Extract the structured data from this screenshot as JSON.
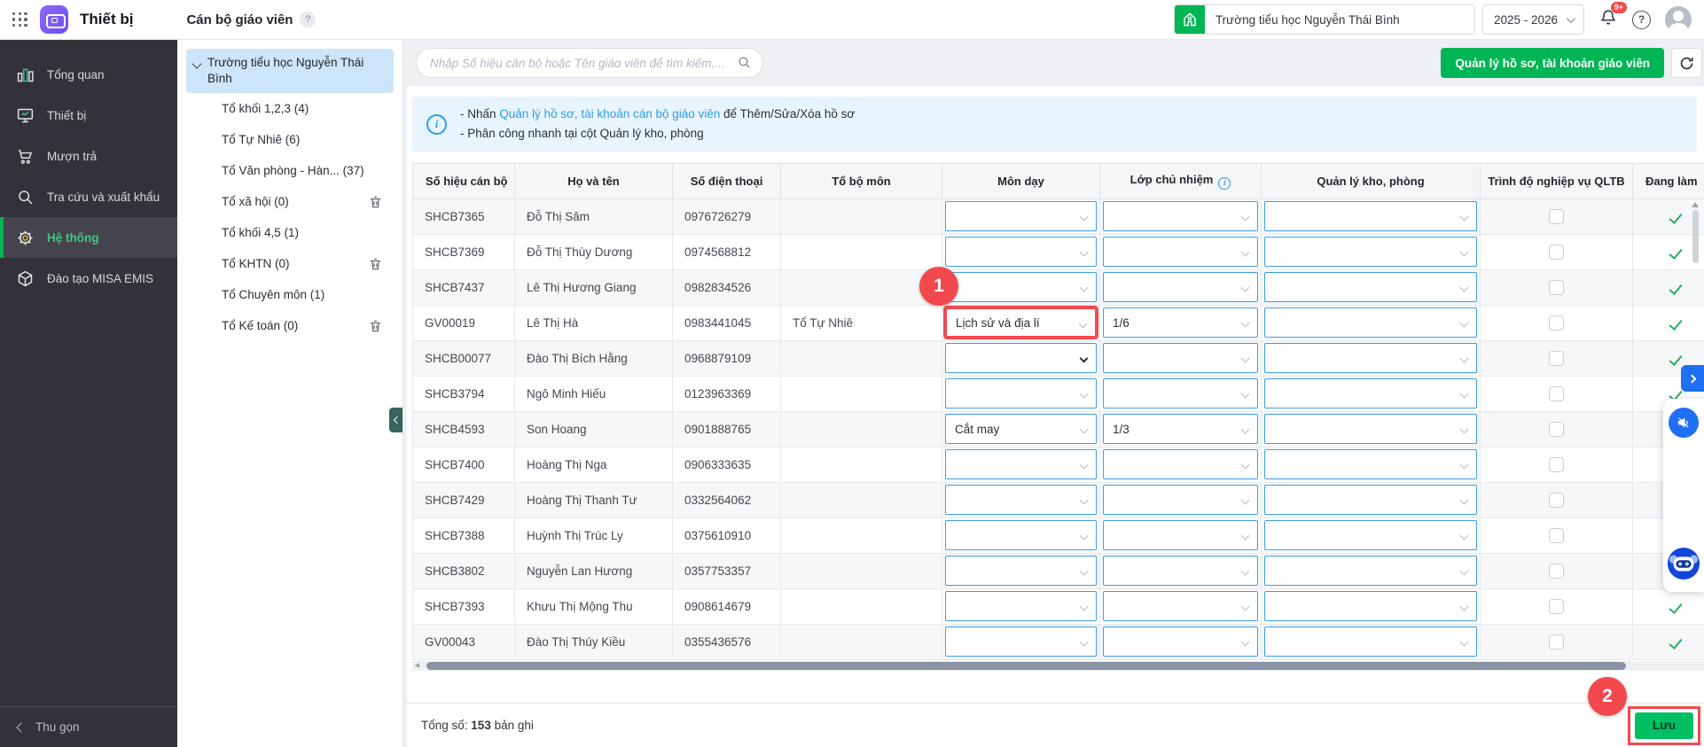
{
  "header": {
    "app_title": "Thiết bị",
    "page_title": "Cán bộ giáo viên",
    "help_glyph": "?",
    "school_name": "Trường tiểu học Nguyễn Thái Bình",
    "school_year": "2025 - 2026",
    "notification_badge": "9+"
  },
  "sidebar": {
    "items": [
      {
        "key": "tong-quan",
        "label": "Tổng quan",
        "icon": "bar-chart-icon",
        "active": false
      },
      {
        "key": "thiet-bi",
        "label": "Thiết bị",
        "icon": "monitor-icon",
        "active": false
      },
      {
        "key": "muon-tra",
        "label": "Mượn trả",
        "icon": "cart-icon",
        "active": false
      },
      {
        "key": "tra-cuu-va-xuat-khau",
        "label": "Tra cứu và xuất khẩu",
        "icon": "search-icon",
        "active": false
      },
      {
        "key": "he-thong",
        "label": "Hệ thống",
        "icon": "gear-icon",
        "active": true
      },
      {
        "key": "dao-tao-misa-emis",
        "label": "Đào tạo MISA EMIS",
        "icon": "cube-icon",
        "active": false
      }
    ],
    "collapse_label": "Thu gọn"
  },
  "tree": {
    "root": {
      "label": "Trường tiểu học Nguyễn Thái Bình",
      "selected": true
    },
    "items": [
      {
        "label": "Tổ khối 1,2,3 (4)",
        "deletable": false
      },
      {
        "label": "Tổ Tự Nhiê (6)",
        "deletable": false
      },
      {
        "label": "Tổ Văn phòng - Hàn... (37)",
        "deletable": false
      },
      {
        "label": "Tổ xã hội (0)",
        "deletable": true
      },
      {
        "label": "Tổ khối 4,5 (1)",
        "deletable": false
      },
      {
        "label": "Tổ KHTN (0)",
        "deletable": true
      },
      {
        "label": "Tổ Chuyên môn (1)",
        "deletable": false
      },
      {
        "label": "Tổ Kế toán (0)",
        "deletable": true
      }
    ]
  },
  "toolbar": {
    "search_placeholder": "Nhập Số hiệu cán bộ hoặc Tên giáo viên để tìm kiếm,...",
    "manage_button": "Quản lý hồ sơ, tài khoản giáo viên"
  },
  "banner": {
    "line1_prefix": "- Nhấn ",
    "line1_link": "Quản lý hồ sơ, tài khoản cán bộ giáo viên",
    "line1_suffix": " để Thêm/Sửa/Xóa hồ sơ",
    "line2": "- Phân công nhanh tại cột Quản lý kho, phòng"
  },
  "table": {
    "columns": [
      "Số hiệu cán bộ",
      "Họ và tên",
      "Số điện thoại",
      "Tổ bộ môn",
      "Môn dạy",
      "Lớp chủ nhiệm",
      "Quản lý kho, phòng",
      "Trình độ nghiệp vụ QLTB",
      "Đang làm"
    ],
    "rows": [
      {
        "id": "SHCB7365",
        "name": "Đỗ Thị Sâm",
        "phone": "0976726279",
        "dept": "",
        "subject": "",
        "homeroom": "",
        "warehouse": "",
        "qualified": false,
        "working": true
      },
      {
        "id": "SHCB7369",
        "name": "Đỗ Thị Thùy Dương",
        "phone": "0974568812",
        "dept": "",
        "subject": "",
        "homeroom": "",
        "warehouse": "",
        "qualified": false,
        "working": true
      },
      {
        "id": "SHCB7437",
        "name": "Lê Thị Hương Giang",
        "phone": "0982834526",
        "dept": "",
        "subject": "",
        "homeroom": "",
        "warehouse": "",
        "qualified": false,
        "working": true
      },
      {
        "id": "GV00019",
        "name": "Lê Thị Hà",
        "phone": "0983441045",
        "dept": "Tổ Tự Nhiê",
        "subject": "Lịch sử và địa lí",
        "homeroom": "1/6",
        "warehouse": "",
        "qualified": false,
        "working": true,
        "subject_annotated": true
      },
      {
        "id": "SHCB00077",
        "name": "Đào Thị Bích Hằng",
        "phone": "0968879109",
        "dept": "",
        "subject": "",
        "homeroom": "",
        "warehouse": "",
        "qualified": false,
        "working": true,
        "subject_focused": true
      },
      {
        "id": "SHCB3794",
        "name": "Ngô Minh Hiếu",
        "phone": "0123963369",
        "dept": "",
        "subject": "",
        "homeroom": "",
        "warehouse": "",
        "qualified": false,
        "working": true
      },
      {
        "id": "SHCB4593",
        "name": "Son Hoang",
        "phone": "0901888765",
        "dept": "",
        "subject": "Cắt may",
        "homeroom": "1/3",
        "warehouse": "",
        "qualified": false,
        "working": true
      },
      {
        "id": "SHCB7400",
        "name": "Hoàng Thị Nga",
        "phone": "0906333635",
        "dept": "",
        "subject": "",
        "homeroom": "",
        "warehouse": "",
        "qualified": false,
        "working": true
      },
      {
        "id": "SHCB7429",
        "name": "Hoàng Thị Thanh Tư",
        "phone": "0332564062",
        "dept": "",
        "subject": "",
        "homeroom": "",
        "warehouse": "",
        "qualified": false,
        "working": true
      },
      {
        "id": "SHCB7388",
        "name": "Huỳnh Thị Trúc Ly",
        "phone": "0375610910",
        "dept": "",
        "subject": "",
        "homeroom": "",
        "warehouse": "",
        "qualified": false,
        "working": true
      },
      {
        "id": "SHCB3802",
        "name": "Nguyễn Lan Hương",
        "phone": "0357753357",
        "dept": "",
        "subject": "",
        "homeroom": "",
        "warehouse": "",
        "qualified": false,
        "working": true
      },
      {
        "id": "SHCB7393",
        "name": "Khưu Thị Mộng Thu",
        "phone": "0908614679",
        "dept": "",
        "subject": "",
        "homeroom": "",
        "warehouse": "",
        "qualified": false,
        "working": true
      },
      {
        "id": "GV00043",
        "name": "Đào Thị Thúy Kiều",
        "phone": "0355436576",
        "dept": "",
        "subject": "",
        "homeroom": "",
        "warehouse": "",
        "qualified": false,
        "working": true
      }
    ]
  },
  "footer": {
    "total_label": "Tổng số:",
    "total_count": "153",
    "total_unit": "bản ghi",
    "save_button": "Lưu"
  },
  "annotations": {
    "step1": "1",
    "step2": "2"
  },
  "colors": {
    "accent_green": "#00b554",
    "annotation_red": "#f2494e",
    "dropdown_blue": "#3e9de9",
    "link_blue": "#2e9bf0",
    "sidebar_dark": "#33323b"
  }
}
